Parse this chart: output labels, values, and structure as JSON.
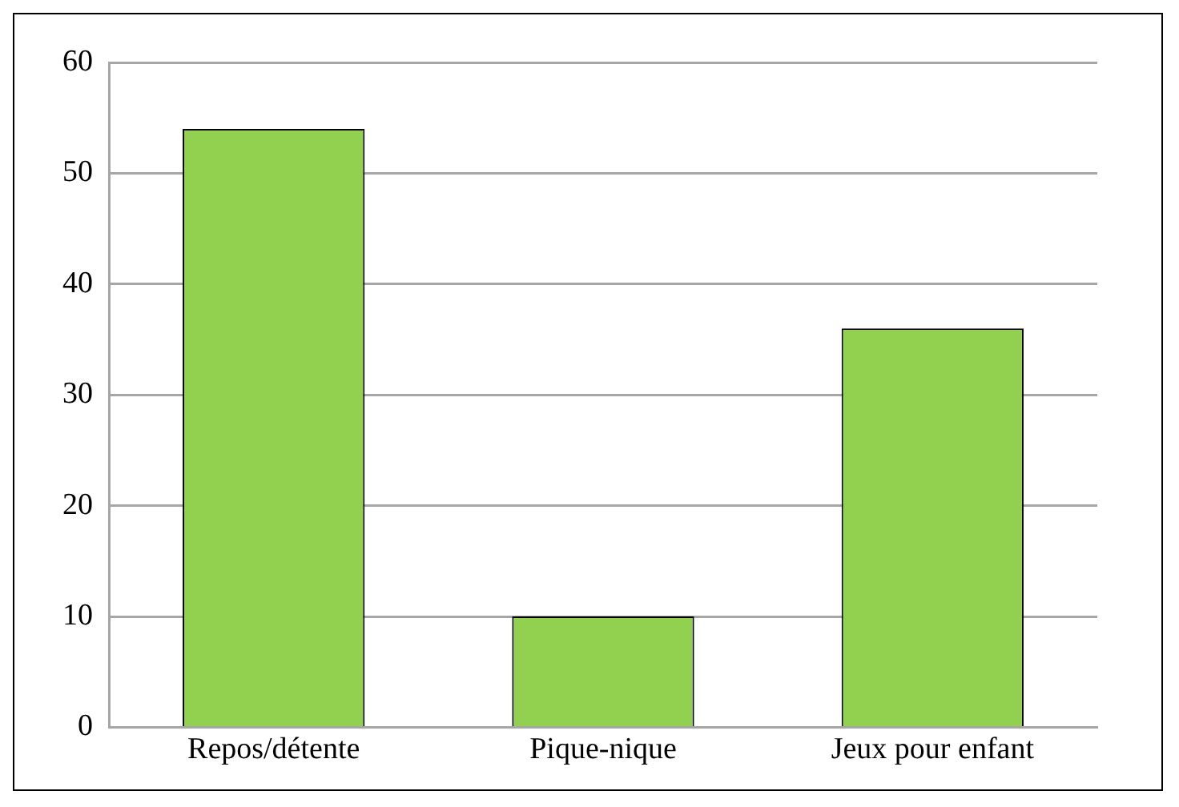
{
  "chart_data": {
    "type": "bar",
    "categories": [
      "Repos/détente",
      "Pique-nique",
      "Jeux pour enfant"
    ],
    "values": [
      54,
      10,
      36
    ],
    "color": "#92d050",
    "ylim": [
      0,
      60
    ],
    "yticks": [
      0,
      10,
      20,
      30,
      40,
      50,
      60
    ],
    "grid": "y"
  }
}
